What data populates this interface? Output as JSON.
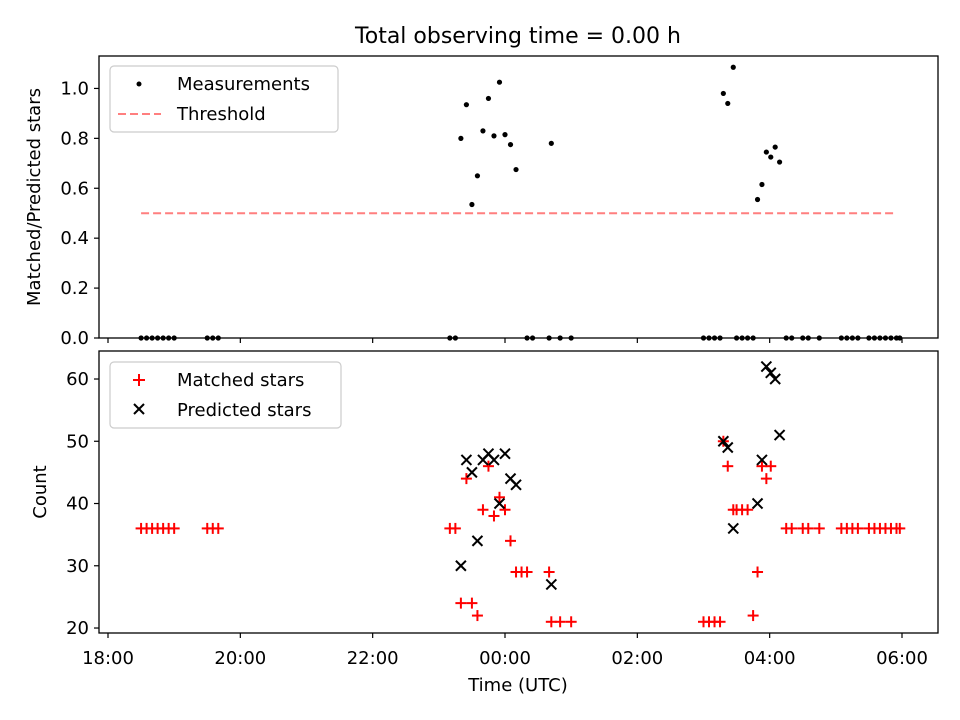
{
  "title": "Total observing time = 0.00 h",
  "chart_data": [
    {
      "type": "scatter",
      "ylabel": "Matched/Predicted stars",
      "xlabel": "",
      "xlim": [
        "18:00",
        "06:00"
      ],
      "ylim": [
        0.0,
        1.13
      ],
      "yticks": [
        "0.0",
        "0.2",
        "0.4",
        "0.6",
        "0.8",
        "1.0"
      ],
      "legend_position": "upper-left",
      "series": [
        {
          "name": "Measurements",
          "marker": "dot",
          "color": "#000000",
          "points": [
            [
              "18:30",
              0
            ],
            [
              "18:35",
              0
            ],
            [
              "18:40",
              0
            ],
            [
              "18:45",
              0
            ],
            [
              "18:50",
              0
            ],
            [
              "18:55",
              0
            ],
            [
              "19:00",
              0
            ],
            [
              "19:30",
              0
            ],
            [
              "19:35",
              0
            ],
            [
              "19:40",
              0
            ],
            [
              "23:10",
              0
            ],
            [
              "23:15",
              0
            ],
            [
              "23:20",
              0.8
            ],
            [
              "23:25",
              0.935
            ],
            [
              "23:30",
              0.535
            ],
            [
              "23:35",
              0.65
            ],
            [
              "23:40",
              0.83
            ],
            [
              "23:45",
              0.96
            ],
            [
              "23:50",
              0.81
            ],
            [
              "23:55",
              1.025
            ],
            [
              "00:00",
              0.815
            ],
            [
              "00:05",
              0.775
            ],
            [
              "00:10",
              0.675
            ],
            [
              "00:20",
              0
            ],
            [
              "00:25",
              0
            ],
            [
              "00:40",
              0
            ],
            [
              "00:42",
              0.78
            ],
            [
              "00:50",
              0
            ],
            [
              "01:00",
              0
            ],
            [
              "03:00",
              0
            ],
            [
              "03:05",
              0
            ],
            [
              "03:10",
              0
            ],
            [
              "03:15",
              0
            ],
            [
              "03:18",
              0.98
            ],
            [
              "03:22",
              0.94
            ],
            [
              "03:27",
              1.085
            ],
            [
              "03:30",
              0
            ],
            [
              "03:35",
              0
            ],
            [
              "03:40",
              0
            ],
            [
              "03:45",
              0
            ],
            [
              "03:49",
              0.555
            ],
            [
              "03:53",
              0.615
            ],
            [
              "03:57",
              0.745
            ],
            [
              "04:01",
              0.725
            ],
            [
              "04:05",
              0.765
            ],
            [
              "04:09",
              0.705
            ],
            [
              "04:15",
              0
            ],
            [
              "04:20",
              0
            ],
            [
              "04:30",
              0
            ],
            [
              "04:35",
              0
            ],
            [
              "04:45",
              0
            ],
            [
              "05:05",
              0
            ],
            [
              "05:10",
              0
            ],
            [
              "05:15",
              0
            ],
            [
              "05:20",
              0
            ],
            [
              "05:30",
              0
            ],
            [
              "05:35",
              0
            ],
            [
              "05:40",
              0
            ],
            [
              "05:45",
              0
            ],
            [
              "05:50",
              0
            ],
            [
              "05:55",
              0
            ],
            [
              "05:58",
              0
            ]
          ]
        },
        {
          "name": "Threshold",
          "style": "dashed",
          "color": "#ff7f7f",
          "points": [
            [
              "18:30",
              0.5
            ],
            [
              "05:55",
              0.5
            ]
          ]
        }
      ]
    },
    {
      "type": "scatter",
      "ylabel": "Count",
      "xlabel": "Time (UTC)",
      "xticks": [
        "18:00",
        "20:00",
        "22:00",
        "00:00",
        "02:00",
        "04:00",
        "06:00"
      ],
      "xlim": [
        "18:00",
        "06:00"
      ],
      "ylim": [
        19.2,
        64.5
      ],
      "yticks": [
        "20",
        "30",
        "40",
        "50",
        "60"
      ],
      "legend_position": "upper-left",
      "series": [
        {
          "name": "Matched stars",
          "marker": "plus",
          "color": "#ff0000",
          "points": [
            [
              "18:30",
              36
            ],
            [
              "18:35",
              36
            ],
            [
              "18:40",
              36
            ],
            [
              "18:45",
              36
            ],
            [
              "18:50",
              36
            ],
            [
              "18:55",
              36
            ],
            [
              "19:00",
              36
            ],
            [
              "19:30",
              36
            ],
            [
              "19:35",
              36
            ],
            [
              "19:40",
              36
            ],
            [
              "23:10",
              36
            ],
            [
              "23:15",
              36
            ],
            [
              "23:20",
              24
            ],
            [
              "23:25",
              44
            ],
            [
              "23:30",
              24
            ],
            [
              "23:35",
              22
            ],
            [
              "23:40",
              39
            ],
            [
              "23:45",
              46
            ],
            [
              "23:50",
              38
            ],
            [
              "23:55",
              41
            ],
            [
              "00:00",
              39
            ],
            [
              "00:05",
              34
            ],
            [
              "00:10",
              29
            ],
            [
              "00:15",
              29
            ],
            [
              "00:20",
              29
            ],
            [
              "00:40",
              29
            ],
            [
              "00:42",
              21
            ],
            [
              "00:50",
              21
            ],
            [
              "01:00",
              21
            ],
            [
              "03:00",
              21
            ],
            [
              "03:05",
              21
            ],
            [
              "03:10",
              21
            ],
            [
              "03:15",
              21
            ],
            [
              "03:18",
              50
            ],
            [
              "03:22",
              46
            ],
            [
              "03:27",
              39
            ],
            [
              "03:30",
              39
            ],
            [
              "03:35",
              39
            ],
            [
              "03:40",
              39
            ],
            [
              "03:45",
              22
            ],
            [
              "03:49",
              29
            ],
            [
              "03:53",
              46
            ],
            [
              "03:57",
              44
            ],
            [
              "04:01",
              46
            ],
            [
              "04:15",
              36
            ],
            [
              "04:20",
              36
            ],
            [
              "04:30",
              36
            ],
            [
              "04:35",
              36
            ],
            [
              "04:45",
              36
            ],
            [
              "05:05",
              36
            ],
            [
              "05:10",
              36
            ],
            [
              "05:15",
              36
            ],
            [
              "05:20",
              36
            ],
            [
              "05:30",
              36
            ],
            [
              "05:35",
              36
            ],
            [
              "05:40",
              36
            ],
            [
              "05:45",
              36
            ],
            [
              "05:50",
              36
            ],
            [
              "05:55",
              36
            ],
            [
              "05:58",
              36
            ]
          ]
        },
        {
          "name": "Predicted stars",
          "marker": "x",
          "color": "#000000",
          "points": [
            [
              "23:20",
              30
            ],
            [
              "23:25",
              47
            ],
            [
              "23:30",
              45
            ],
            [
              "23:35",
              34
            ],
            [
              "23:40",
              47
            ],
            [
              "23:45",
              48
            ],
            [
              "23:50",
              47
            ],
            [
              "23:55",
              40
            ],
            [
              "00:00",
              48
            ],
            [
              "00:05",
              44
            ],
            [
              "00:10",
              43
            ],
            [
              "00:42",
              27
            ],
            [
              "03:18",
              50
            ],
            [
              "03:22",
              49
            ],
            [
              "03:27",
              36
            ],
            [
              "03:49",
              40
            ],
            [
              "03:53",
              47
            ],
            [
              "03:57",
              62
            ],
            [
              "04:01",
              61
            ],
            [
              "04:05",
              60
            ],
            [
              "04:09",
              51
            ]
          ]
        }
      ]
    }
  ]
}
